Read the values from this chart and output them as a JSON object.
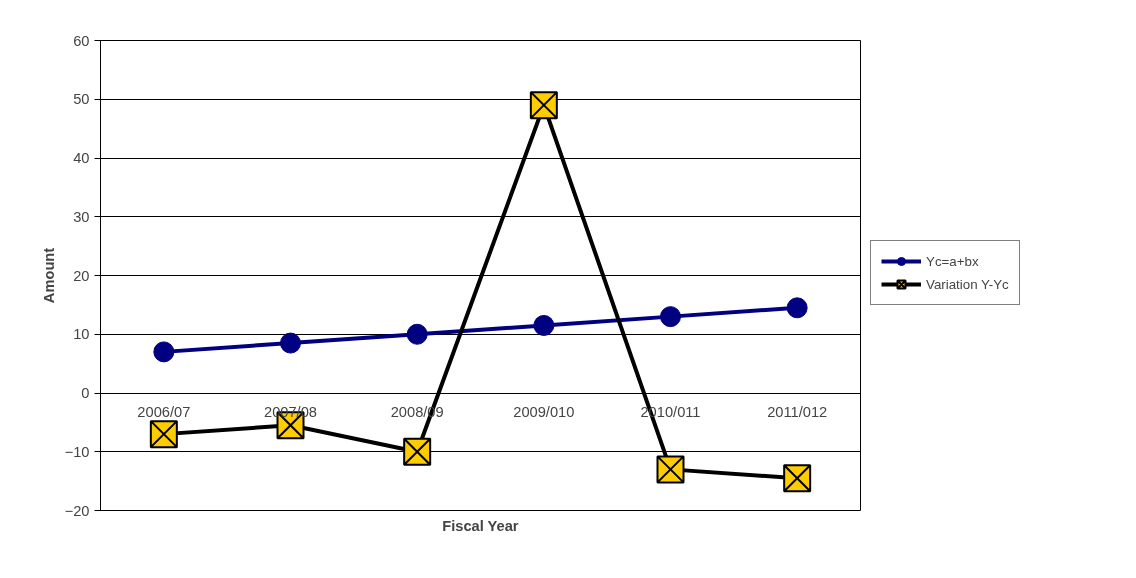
{
  "chart_data": {
    "type": "line",
    "xlabel": "Fiscal Year",
    "ylabel": "Amount",
    "categories": [
      "2006/07",
      "2007/08",
      "2008/09",
      "2009/010",
      "2010/011",
      "2011/012"
    ],
    "series": [
      {
        "name": "Yc=a+bx",
        "color": "#000080",
        "marker": "circle",
        "values": [
          7,
          8.5,
          10,
          11.5,
          13,
          14.5
        ]
      },
      {
        "name": "Variation Y-Yc",
        "color": "#000000",
        "marker": "square",
        "values": [
          -7,
          -5.5,
          -10,
          49,
          -13,
          -14.5
        ]
      }
    ],
    "ylim": [
      -20,
      60
    ],
    "yticks": [
      -20,
      -10,
      0,
      10,
      20,
      30,
      40,
      50,
      60
    ],
    "grid": "y",
    "legend": "right"
  }
}
